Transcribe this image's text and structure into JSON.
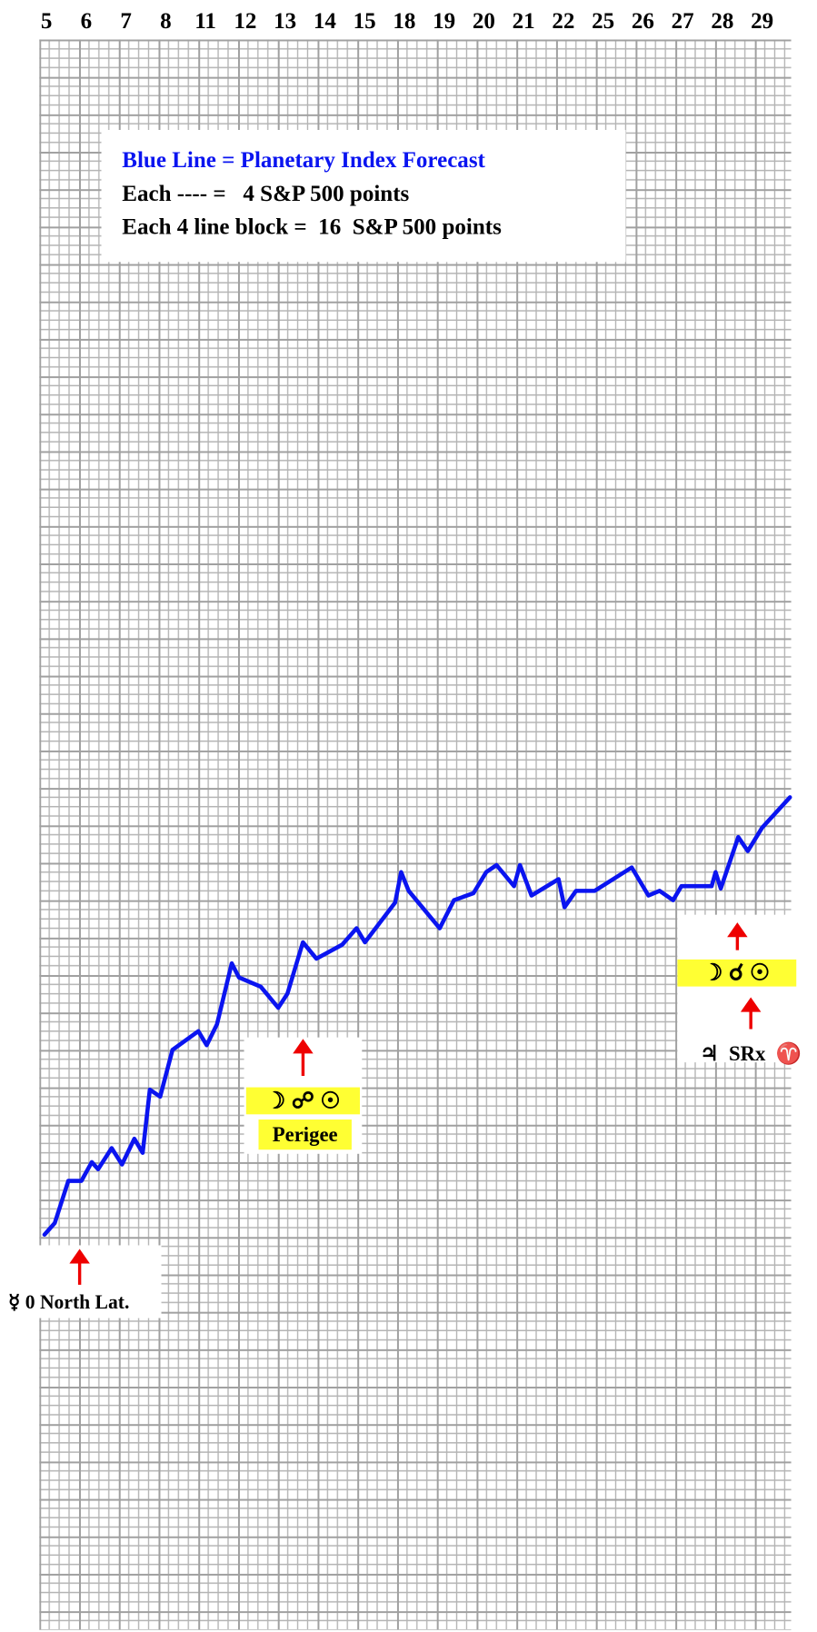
{
  "chart_data": {
    "type": "line",
    "notes": [
      "Blue Line = Planetary Index Forecast",
      "Each ---- =   4 S&P 500 points",
      "Each 4 line block =  16  S&P 500 points"
    ],
    "categories": [
      "5",
      "6",
      "7",
      "8",
      "11",
      "12",
      "13",
      "14",
      "15",
      "18",
      "19",
      "20",
      "21",
      "22",
      "25",
      "26",
      "27",
      "28",
      "29"
    ],
    "x": [
      -0.05,
      0.21,
      0.55,
      0.88,
      1.14,
      1.3,
      1.64,
      1.9,
      2.21,
      2.42,
      2.6,
      2.86,
      3.17,
      3.82,
      4.03,
      4.29,
      4.66,
      4.84,
      5.39,
      5.83,
      6.06,
      6.45,
      6.79,
      7.44,
      7.8,
      8.01,
      8.77,
      8.92,
      9.11,
      9.89,
      10.25,
      10.74,
      11.06,
      11.32,
      11.76,
      11.91,
      12.2,
      12.88,
      13.03,
      13.32,
      13.79,
      14.72,
      15.14,
      15.42,
      15.76,
      15.97,
      16.73,
      16.83,
      16.96,
      17.4,
      17.64,
      18.0,
      18.7
    ],
    "series": [
      {
        "color": "#0a14f0",
        "values": [
          169,
          174,
          192,
          192,
          200,
          197,
          206,
          199,
          210,
          204,
          231,
          228,
          248,
          256,
          250,
          259,
          285,
          279,
          275,
          266,
          272,
          294,
          287,
          293,
          300,
          294,
          311,
          324,
          316,
          300,
          312,
          315,
          324,
          327,
          318,
          327,
          314,
          321,
          309,
          316,
          316,
          326,
          314,
          316,
          312,
          318,
          318,
          324,
          317,
          339,
          333,
          343,
          356
        ]
      }
    ],
    "xlim": [
      -0.18,
      18.73
    ],
    "ylim": [
      0,
      680
    ],
    "annotations": [
      "☿ 0 North Lat.",
      "☽ ☍ ☉",
      "Perigee",
      "☽ ☌ ☉",
      "♃  SRx  ♈"
    ]
  }
}
